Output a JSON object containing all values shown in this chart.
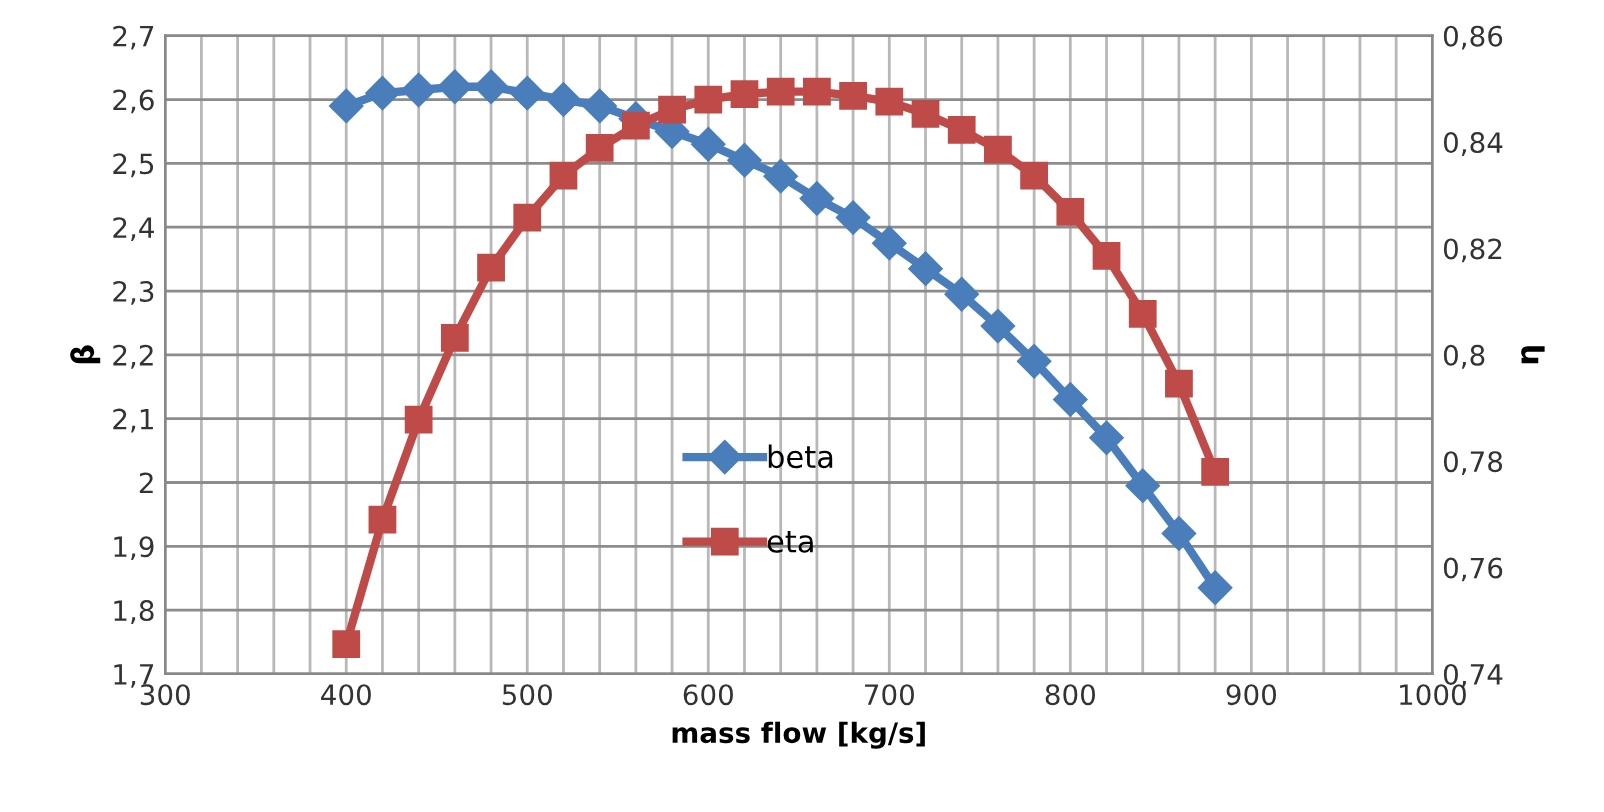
{
  "chart_data": {
    "type": "line",
    "xlabel": "mass flow [kg/s]",
    "ylabel": "β",
    "y2label": "η",
    "x": [
      400,
      420,
      440,
      460,
      480,
      500,
      520,
      540,
      560,
      580,
      600,
      620,
      640,
      660,
      680,
      700,
      720,
      740,
      760,
      780,
      800,
      820,
      840,
      860,
      880
    ],
    "series": [
      {
        "name": "beta",
        "color": "#4a7ebb",
        "marker": "diamond",
        "values": [
          2.59,
          2.61,
          2.615,
          2.62,
          2.62,
          2.61,
          2.6,
          2.59,
          2.57,
          2.55,
          2.53,
          2.505,
          2.48,
          2.445,
          2.415,
          2.375,
          2.335,
          2.295,
          2.245,
          2.19,
          2.13,
          2.07,
          1.995,
          1.92,
          1.835
        ]
      },
      {
        "name": "eta",
        "color": "#be4b48",
        "marker": "square",
        "axis": "y2",
        "values": [
          0.7456,
          0.769,
          0.7878,
          0.8032,
          0.8164,
          0.8258,
          0.8337,
          0.8389,
          0.8431,
          0.8461,
          0.848,
          0.849,
          0.8495,
          0.8495,
          0.8487,
          0.8476,
          0.8453,
          0.8423,
          0.8386,
          0.8337,
          0.8269,
          0.8186,
          0.8077,
          0.7946,
          0.778
        ]
      }
    ],
    "xlim": [
      300,
      1000
    ],
    "xticks": [
      300,
      {
        "value": 320,
        "label": null
      },
      {
        "value": 340,
        "label": null
      },
      {
        "value": 360,
        "label": null
      },
      {
        "value": 380,
        "label": null
      },
      400,
      {
        "value": 420,
        "label": null
      },
      {
        "value": 440,
        "label": null
      },
      {
        "value": 460,
        "label": null
      },
      {
        "value": 480,
        "label": null
      },
      500,
      {
        "value": 520,
        "label": null
      },
      {
        "value": 540,
        "label": null
      },
      {
        "value": 560,
        "label": null
      },
      {
        "value": 580,
        "label": null
      },
      600,
      {
        "value": 620,
        "label": null
      },
      {
        "value": 640,
        "label": null
      },
      {
        "value": 660,
        "label": null
      },
      {
        "value": 680,
        "label": null
      },
      700,
      {
        "value": 720,
        "label": null
      },
      {
        "value": 740,
        "label": null
      },
      {
        "value": 760,
        "label": null
      },
      {
        "value": 780,
        "label": null
      },
      800,
      {
        "value": 820,
        "label": null
      },
      {
        "value": 840,
        "label": null
      },
      {
        "value": 860,
        "label": null
      },
      {
        "value": 880,
        "label": null
      },
      900,
      {
        "value": 920,
        "label": null
      },
      {
        "value": 940,
        "label": null
      },
      {
        "value": 960,
        "label": null
      },
      {
        "value": 980,
        "label": null
      },
      1000
    ],
    "ylim": [
      1.7,
      2.7
    ],
    "yticks": [
      {
        "value": 1.7,
        "label": "1,7"
      },
      {
        "value": 1.8,
        "label": "1,8"
      },
      {
        "value": 1.9,
        "label": "1,9"
      },
      {
        "value": 2,
        "label": "2"
      },
      {
        "value": 2.1,
        "label": "2,1"
      },
      {
        "value": 2.2,
        "label": "2,2"
      },
      {
        "value": 2.3,
        "label": "2,3"
      },
      {
        "value": 2.4,
        "label": "2,4"
      },
      {
        "value": 2.5,
        "label": "2,5"
      },
      {
        "value": 2.6,
        "label": "2,6"
      },
      {
        "value": 2.7,
        "label": "2,7"
      }
    ],
    "y2lim": [
      0.74,
      0.86
    ],
    "y2ticks": [
      {
        "value": 0.74,
        "label": "0,74"
      },
      {
        "value": 0.76,
        "label": "0,76"
      },
      {
        "value": 0.78,
        "label": "0,78"
      },
      {
        "value": 0.8,
        "label": "0,8"
      },
      {
        "value": 0.82,
        "label": "0,82"
      },
      {
        "value": 0.84,
        "label": "0,84"
      },
      {
        "value": 0.86,
        "label": "0,86"
      }
    ],
    "grid": true,
    "legend": "center",
    "line_style": "solid"
  }
}
